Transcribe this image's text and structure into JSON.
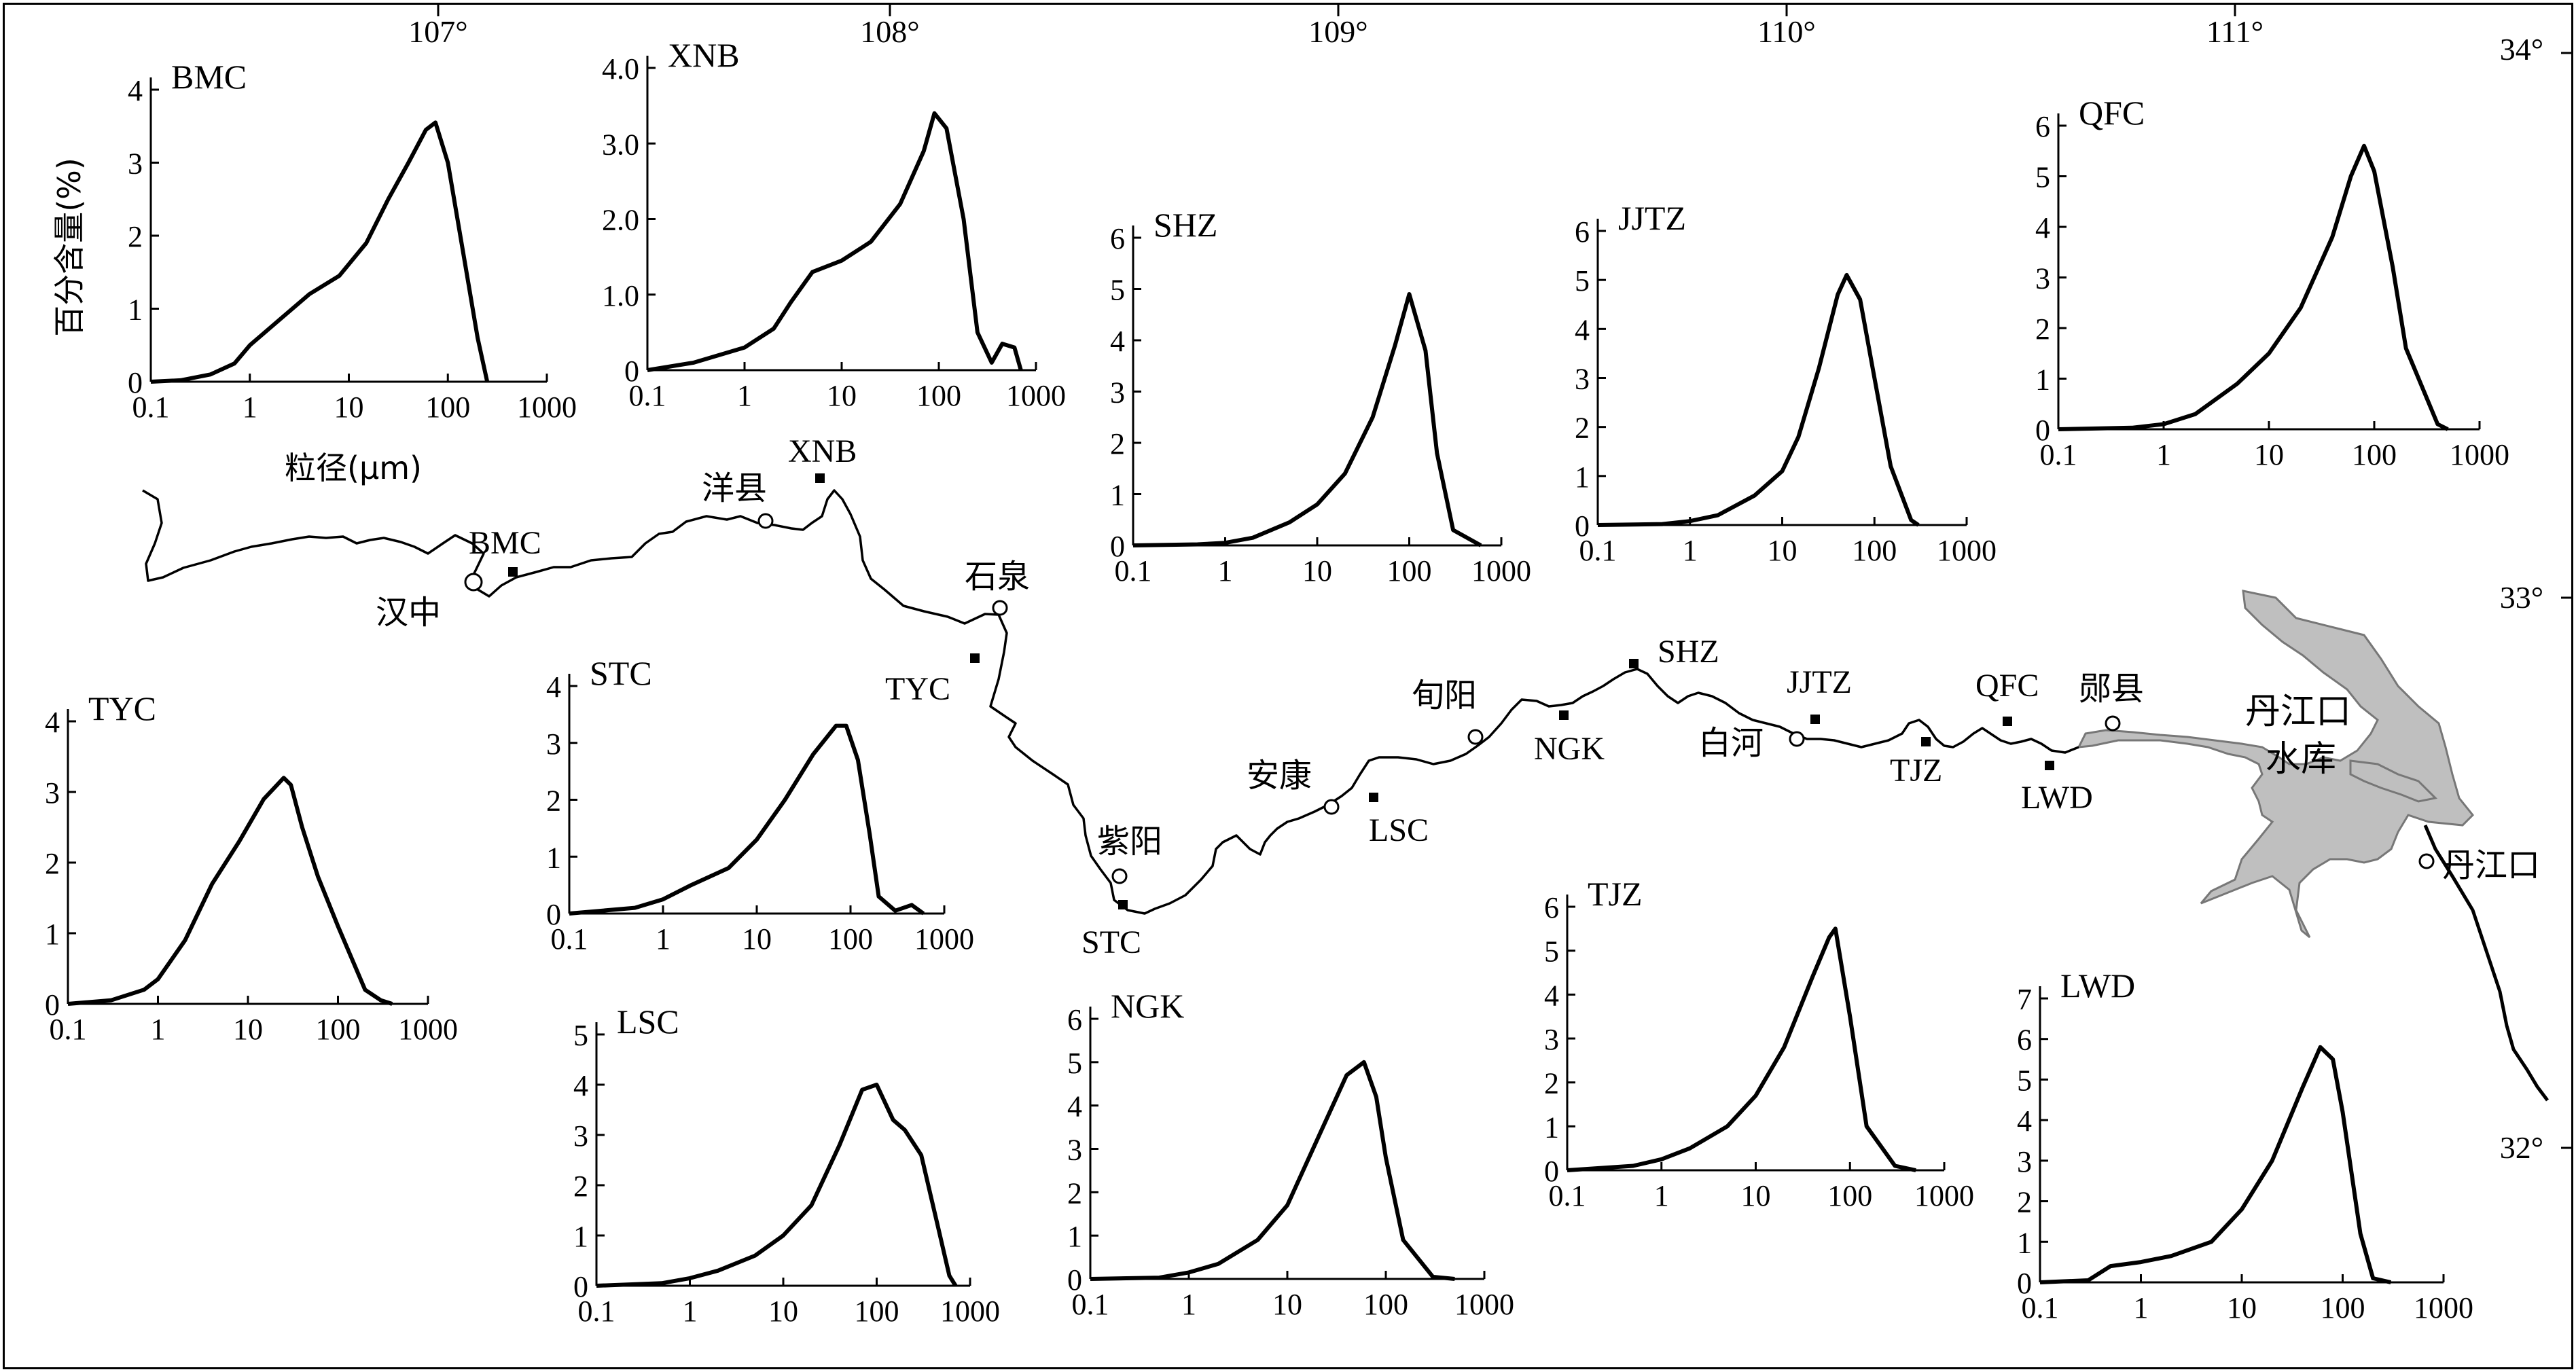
{
  "longitudes": [
    "107°",
    "108°",
    "109°",
    "110°",
    "111°"
  ],
  "latitudes": [
    "34°",
    "33°",
    "32°"
  ],
  "axis_labels": {
    "y": "百分含量(%)",
    "x": "粒径(μm)"
  },
  "x_ticks": [
    "0.1",
    "1",
    "10",
    "100",
    "1000"
  ],
  "river": {
    "places": [
      {
        "id": "hanzhong",
        "name": "汉中",
        "kind": "city"
      },
      {
        "id": "yangxian",
        "name": "洋县",
        "kind": "city"
      },
      {
        "id": "shiquan",
        "name": "石泉",
        "kind": "city"
      },
      {
        "id": "ziyang",
        "name": "紫阳",
        "kind": "city"
      },
      {
        "id": "ankang",
        "name": "安康",
        "kind": "city"
      },
      {
        "id": "xunyang",
        "name": "旬阳",
        "kind": "city"
      },
      {
        "id": "baihe",
        "name": "白河",
        "kind": "city"
      },
      {
        "id": "yunxian",
        "name": "郧县",
        "kind": "city"
      },
      {
        "id": "danjiangkou",
        "name": "丹江口",
        "kind": "city"
      },
      {
        "id": "BMC",
        "name": "BMC",
        "kind": "site"
      },
      {
        "id": "XNB",
        "name": "XNB",
        "kind": "site"
      },
      {
        "id": "TYC",
        "name": "TYC",
        "kind": "site"
      },
      {
        "id": "STC",
        "name": "STC",
        "kind": "site"
      },
      {
        "id": "LSC",
        "name": "LSC",
        "kind": "site"
      },
      {
        "id": "NGK",
        "name": "NGK",
        "kind": "site"
      },
      {
        "id": "SHZ",
        "name": "SHZ",
        "kind": "site"
      },
      {
        "id": "JJTZ",
        "name": "JJTZ",
        "kind": "site"
      },
      {
        "id": "TJZ",
        "name": "TJZ",
        "kind": "site"
      },
      {
        "id": "QFC",
        "name": "QFC",
        "kind": "site"
      },
      {
        "id": "LWD",
        "name": "LWD",
        "kind": "site"
      }
    ],
    "reservoir_label": [
      "丹江口",
      "水库"
    ]
  },
  "chart_data": [
    {
      "type": "line",
      "title": "BMC",
      "xscale": "log",
      "xlim": [
        0.1,
        1000
      ],
      "ylim": [
        0,
        4
      ],
      "yticks": [
        "0",
        "1",
        "2",
        "3",
        "4"
      ],
      "x": [
        0.1,
        0.2,
        0.4,
        0.7,
        1,
        2,
        4,
        8,
        15,
        25,
        40,
        60,
        75,
        100,
        150,
        200,
        250
      ],
      "y": [
        0,
        0.02,
        0.1,
        0.25,
        0.5,
        0.85,
        1.2,
        1.45,
        1.9,
        2.5,
        3.0,
        3.45,
        3.55,
        3.0,
        1.6,
        0.6,
        0
      ]
    },
    {
      "type": "line",
      "title": "XNB",
      "xscale": "log",
      "xlim": [
        0.1,
        1000
      ],
      "ylim": [
        0,
        4.0
      ],
      "yticks": [
        "0",
        "1.0",
        "2.0",
        "3.0",
        "4.0"
      ],
      "x": [
        0.1,
        0.3,
        1,
        2,
        3,
        5,
        10,
        20,
        40,
        70,
        90,
        120,
        180,
        250,
        350,
        450,
        600,
        700
      ],
      "y": [
        0,
        0.1,
        0.3,
        0.55,
        0.9,
        1.3,
        1.45,
        1.7,
        2.2,
        2.9,
        3.4,
        3.2,
        2.0,
        0.5,
        0.1,
        0.35,
        0.3,
        0
      ]
    },
    {
      "type": "line",
      "title": "SHZ",
      "xscale": "log",
      "xlim": [
        0.1,
        1000
      ],
      "ylim": [
        0,
        6
      ],
      "yticks": [
        "0",
        "1",
        "2",
        "3",
        "4",
        "5",
        "6"
      ],
      "x": [
        0.1,
        0.5,
        1,
        2,
        5,
        10,
        20,
        40,
        70,
        100,
        150,
        200,
        300,
        600
      ],
      "y": [
        0,
        0.02,
        0.05,
        0.15,
        0.45,
        0.8,
        1.4,
        2.5,
        3.9,
        4.9,
        3.8,
        1.8,
        0.3,
        0
      ]
    },
    {
      "type": "line",
      "title": "JJTZ",
      "xscale": "log",
      "xlim": [
        0.1,
        1000
      ],
      "ylim": [
        0,
        6
      ],
      "yticks": [
        "0",
        "1",
        "2",
        "3",
        "4",
        "5",
        "6"
      ],
      "x": [
        0.1,
        0.5,
        1,
        2,
        5,
        10,
        15,
        25,
        40,
        50,
        70,
        100,
        150,
        250,
        300
      ],
      "y": [
        0,
        0.02,
        0.08,
        0.2,
        0.6,
        1.1,
        1.8,
        3.2,
        4.7,
        5.1,
        4.6,
        3.0,
        1.2,
        0.1,
        0
      ]
    },
    {
      "type": "line",
      "title": "QFC",
      "xscale": "log",
      "xlim": [
        0.1,
        1000
      ],
      "ylim": [
        0,
        6
      ],
      "yticks": [
        "0",
        "1",
        "2",
        "3",
        "4",
        "5",
        "6"
      ],
      "x": [
        0.1,
        0.5,
        1,
        2,
        5,
        10,
        20,
        40,
        60,
        80,
        100,
        150,
        200,
        400,
        500
      ],
      "y": [
        0,
        0.03,
        0.1,
        0.3,
        0.9,
        1.5,
        2.4,
        3.8,
        5.0,
        5.6,
        5.1,
        3.2,
        1.6,
        0.1,
        0
      ]
    },
    {
      "type": "line",
      "title": "TYC",
      "xscale": "log",
      "xlim": [
        0.1,
        1000
      ],
      "ylim": [
        0,
        4
      ],
      "yticks": [
        "0",
        "1",
        "2",
        "3",
        "4"
      ],
      "x": [
        0.1,
        0.3,
        0.7,
        1,
        2,
        4,
        8,
        15,
        25,
        30,
        40,
        60,
        100,
        200,
        300,
        400
      ],
      "y": [
        0,
        0.05,
        0.2,
        0.35,
        0.9,
        1.7,
        2.3,
        2.9,
        3.2,
        3.1,
        2.5,
        1.8,
        1.1,
        0.2,
        0.05,
        0
      ]
    },
    {
      "type": "line",
      "title": "STC",
      "xscale": "log",
      "xlim": [
        0.1,
        1000
      ],
      "ylim": [
        0,
        4
      ],
      "yticks": [
        "0",
        "1",
        "2",
        "3",
        "4"
      ],
      "x": [
        0.1,
        0.5,
        1,
        2,
        5,
        10,
        20,
        40,
        70,
        90,
        120,
        160,
        200,
        300,
        450,
        600
      ],
      "y": [
        0,
        0.1,
        0.25,
        0.5,
        0.8,
        1.3,
        2.0,
        2.8,
        3.3,
        3.3,
        2.7,
        1.4,
        0.3,
        0.05,
        0.15,
        0
      ]
    },
    {
      "type": "line",
      "title": "LSC",
      "xscale": "log",
      "xlim": [
        0.1,
        1000
      ],
      "ylim": [
        0,
        5
      ],
      "yticks": [
        "0",
        "1",
        "2",
        "3",
        "4",
        "5"
      ],
      "x": [
        0.1,
        0.5,
        1,
        2,
        5,
        10,
        20,
        40,
        70,
        100,
        150,
        200,
        300,
        450,
        600,
        700
      ],
      "y": [
        0,
        0.05,
        0.15,
        0.3,
        0.6,
        1.0,
        1.6,
        2.8,
        3.9,
        4.0,
        3.3,
        3.1,
        2.6,
        1.2,
        0.2,
        0
      ]
    },
    {
      "type": "line",
      "title": "NGK",
      "xscale": "log",
      "xlim": [
        0.1,
        1000
      ],
      "ylim": [
        0,
        6
      ],
      "yticks": [
        "0",
        "1",
        "2",
        "3",
        "4",
        "5",
        "6"
      ],
      "x": [
        0.1,
        0.5,
        1,
        2,
        5,
        10,
        20,
        40,
        60,
        80,
        100,
        150,
        300,
        500
      ],
      "y": [
        0,
        0.03,
        0.15,
        0.35,
        0.9,
        1.7,
        3.2,
        4.7,
        5.0,
        4.2,
        2.8,
        0.9,
        0.05,
        0
      ]
    },
    {
      "type": "line",
      "title": "TJZ",
      "xscale": "log",
      "xlim": [
        0.1,
        1000
      ],
      "ylim": [
        0,
        6
      ],
      "yticks": [
        "0",
        "1",
        "2",
        "3",
        "4",
        "5",
        "6"
      ],
      "x": [
        0.1,
        0.5,
        1,
        2,
        5,
        10,
        20,
        40,
        60,
        70,
        100,
        150,
        300,
        500
      ],
      "y": [
        0,
        0.1,
        0.25,
        0.5,
        1.0,
        1.7,
        2.8,
        4.4,
        5.3,
        5.5,
        3.5,
        1.0,
        0.1,
        0
      ]
    },
    {
      "type": "line",
      "title": "LWD",
      "xscale": "log",
      "xlim": [
        0.1,
        1000
      ],
      "ylim": [
        0,
        7
      ],
      "yticks": [
        "0",
        "1",
        "2",
        "3",
        "4",
        "5",
        "6",
        "7"
      ],
      "x": [
        0.1,
        0.3,
        0.5,
        1,
        2,
        5,
        10,
        20,
        40,
        60,
        80,
        100,
        150,
        200,
        300
      ],
      "y": [
        0,
        0.05,
        0.4,
        0.5,
        0.65,
        1.0,
        1.8,
        3.0,
        4.8,
        5.8,
        5.5,
        4.2,
        1.2,
        0.1,
        0
      ]
    }
  ]
}
